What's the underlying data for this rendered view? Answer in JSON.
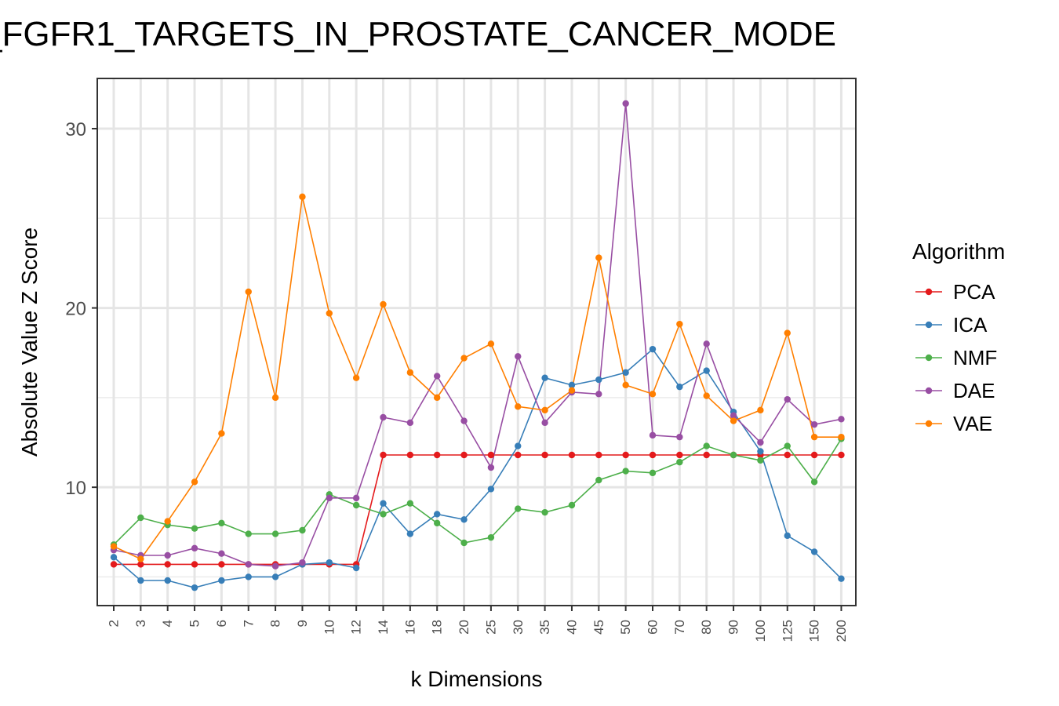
{
  "chart_data": {
    "type": "line",
    "title": "_FGFR1_TARGETS_IN_PROSTATE_CANCER_MODE",
    "xlabel": "k Dimensions",
    "ylabel": "Absolute Value Z Score",
    "categories": [
      "2",
      "3",
      "4",
      "5",
      "6",
      "7",
      "8",
      "9",
      "10",
      "12",
      "14",
      "16",
      "18",
      "20",
      "25",
      "30",
      "35",
      "40",
      "45",
      "50",
      "60",
      "70",
      "80",
      "90",
      "100",
      "125",
      "150",
      "200"
    ],
    "ylim": [
      3.4,
      32.8
    ],
    "yticks": [
      10,
      20,
      30
    ],
    "grid": true,
    "legend": {
      "title": "Algorithm",
      "position": "right"
    },
    "series": [
      {
        "name": "PCA",
        "color": "#e41a1c",
        "values": [
          5.7,
          5.7,
          5.7,
          5.7,
          5.7,
          5.7,
          5.7,
          5.7,
          5.7,
          5.7,
          11.8,
          11.8,
          11.8,
          11.8,
          11.8,
          11.8,
          11.8,
          11.8,
          11.8,
          11.8,
          11.8,
          11.8,
          11.8,
          11.8,
          11.8,
          11.8,
          11.8,
          11.8
        ]
      },
      {
        "name": "ICA",
        "color": "#377eb8",
        "values": [
          6.1,
          4.8,
          4.8,
          4.4,
          4.8,
          5.0,
          5.0,
          5.7,
          5.8,
          5.5,
          9.1,
          7.4,
          8.5,
          8.2,
          9.9,
          12.3,
          16.1,
          15.7,
          16.0,
          16.4,
          17.7,
          15.6,
          16.5,
          14.2,
          12.0,
          7.3,
          6.4,
          4.9
        ]
      },
      {
        "name": "NMF",
        "color": "#4daf4a",
        "values": [
          6.8,
          8.3,
          7.9,
          7.7,
          8.0,
          7.4,
          7.4,
          7.6,
          9.6,
          9.0,
          8.5,
          9.1,
          8.0,
          6.9,
          7.2,
          8.8,
          8.6,
          9.0,
          10.4,
          10.9,
          10.8,
          11.4,
          12.3,
          11.8,
          11.5,
          12.3,
          10.3,
          12.7
        ]
      },
      {
        "name": "DAE",
        "color": "#984ea3",
        "values": [
          6.5,
          6.2,
          6.2,
          6.6,
          6.3,
          5.7,
          5.6,
          5.8,
          9.4,
          9.4,
          13.9,
          13.6,
          16.2,
          13.7,
          11.1,
          17.3,
          13.6,
          15.3,
          15.2,
          31.4,
          12.9,
          12.8,
          18.0,
          14.0,
          12.5,
          14.9,
          13.5,
          13.8
        ]
      },
      {
        "name": "VAE",
        "color": "#ff7f00",
        "values": [
          6.7,
          6.0,
          8.1,
          10.3,
          13.0,
          20.9,
          15.0,
          26.2,
          19.7,
          16.1,
          20.2,
          16.4,
          15.0,
          17.2,
          18.0,
          14.5,
          14.3,
          15.4,
          22.8,
          15.7,
          15.2,
          19.1,
          15.1,
          13.7,
          14.3,
          18.6,
          12.8,
          12.8
        ]
      }
    ]
  }
}
